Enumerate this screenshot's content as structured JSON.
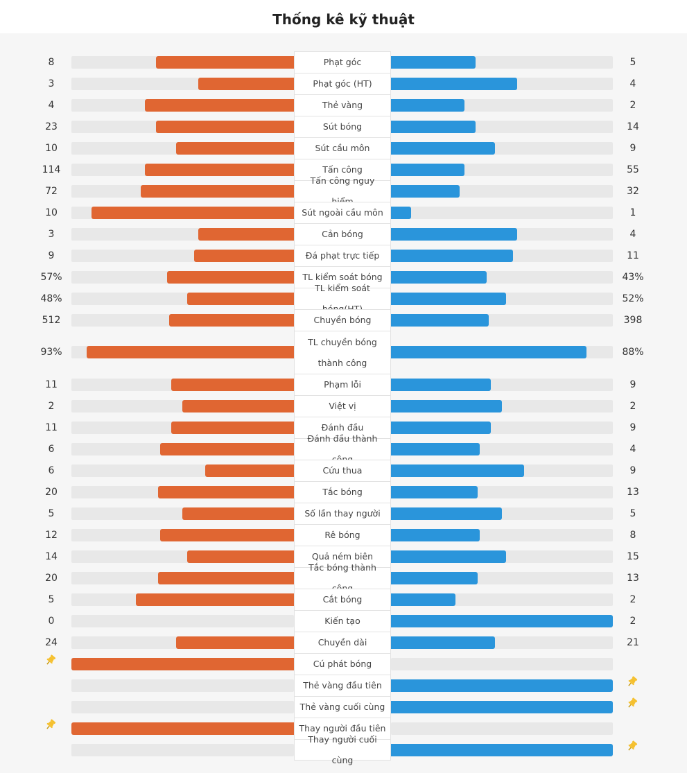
{
  "title": "Thống kê kỹ thuật",
  "colors": {
    "home": "#e06632",
    "away": "#2a95db",
    "track": "#e8e8e8",
    "pin": "#f5c02e"
  },
  "rows": [
    {
      "label": "Phạt góc",
      "home": "8",
      "away": "5",
      "home_fill": 0.62,
      "away_fill": 0.38
    },
    {
      "label": "Phạt góc (HT)",
      "home": "3",
      "away": "4",
      "home_fill": 0.43,
      "away_fill": 0.57
    },
    {
      "label": "Thẻ vàng",
      "home": "4",
      "away": "2",
      "home_fill": 0.67,
      "away_fill": 0.33
    },
    {
      "label": "Sút bóng",
      "home": "23",
      "away": "14",
      "home_fill": 0.62,
      "away_fill": 0.38
    },
    {
      "label": "Sút cầu môn",
      "home": "10",
      "away": "9",
      "home_fill": 0.53,
      "away_fill": 0.47
    },
    {
      "label": "Tấn công",
      "home": "114",
      "away": "55",
      "home_fill": 0.67,
      "away_fill": 0.33
    },
    {
      "label": "Tấn công nguy hiểm",
      "home": "72",
      "away": "32",
      "home_fill": 0.69,
      "away_fill": 0.31
    },
    {
      "label": "Sút ngoài cầu môn",
      "home": "10",
      "away": "1",
      "home_fill": 0.91,
      "away_fill": 0.09
    },
    {
      "label": "Cản bóng",
      "home": "3",
      "away": "4",
      "home_fill": 0.43,
      "away_fill": 0.57
    },
    {
      "label": "Đá phạt trực tiếp",
      "home": "9",
      "away": "11",
      "home_fill": 0.45,
      "away_fill": 0.55
    },
    {
      "label": "TL kiểm soát bóng",
      "home": "57%",
      "away": "43%",
      "home_fill": 0.57,
      "away_fill": 0.43
    },
    {
      "label": "TL kiểm soát bóng(HT)",
      "home": "48%",
      "away": "52%",
      "home_fill": 0.48,
      "away_fill": 0.52
    },
    {
      "label": "Chuyền bóng",
      "home": "512",
      "away": "398",
      "home_fill": 0.56,
      "away_fill": 0.44
    },
    {
      "label": "TL chuyền bóng thành công",
      "home": "93%",
      "away": "88%",
      "home_fill": 0.93,
      "away_fill": 0.88,
      "tall": true
    },
    {
      "label": "Phạm lỗi",
      "home": "11",
      "away": "9",
      "home_fill": 0.55,
      "away_fill": 0.45
    },
    {
      "label": "Việt vị",
      "home": "2",
      "away": "2",
      "home_fill": 0.5,
      "away_fill": 0.5
    },
    {
      "label": "Đánh đầu",
      "home": "11",
      "away": "9",
      "home_fill": 0.55,
      "away_fill": 0.45
    },
    {
      "label": "Đánh đầu thành công",
      "home": "6",
      "away": "4",
      "home_fill": 0.6,
      "away_fill": 0.4
    },
    {
      "label": "Cứu thua",
      "home": "6",
      "away": "9",
      "home_fill": 0.4,
      "away_fill": 0.6
    },
    {
      "label": "Tắc bóng",
      "home": "20",
      "away": "13",
      "home_fill": 0.61,
      "away_fill": 0.39
    },
    {
      "label": "Số lần thay người",
      "home": "5",
      "away": "5",
      "home_fill": 0.5,
      "away_fill": 0.5
    },
    {
      "label": "Rê bóng",
      "home": "12",
      "away": "8",
      "home_fill": 0.6,
      "away_fill": 0.4
    },
    {
      "label": "Quả ném biên",
      "home": "14",
      "away": "15",
      "home_fill": 0.48,
      "away_fill": 0.52
    },
    {
      "label": "Tắc bóng thành công",
      "home": "20",
      "away": "13",
      "home_fill": 0.61,
      "away_fill": 0.39
    },
    {
      "label": "Cắt bóng",
      "home": "5",
      "away": "2",
      "home_fill": 0.71,
      "away_fill": 0.29
    },
    {
      "label": "Kiến tạo",
      "home": "0",
      "away": "2",
      "home_fill": 0.0,
      "away_fill": 1.0
    },
    {
      "label": "Chuyền dài",
      "home": "24",
      "away": "21",
      "home_fill": 0.53,
      "away_fill": 0.47
    },
    {
      "label": "Cú phát bóng",
      "home": "",
      "away": "",
      "home_fill": 1.0,
      "away_fill": 0.0,
      "home_icon": "pin-icon"
    },
    {
      "label": "Thẻ vàng đầu tiên",
      "home": "",
      "away": "",
      "home_fill": 0.0,
      "away_fill": 1.0,
      "away_icon": "pin-icon"
    },
    {
      "label": "Thẻ vàng cuối cùng",
      "home": "",
      "away": "",
      "home_fill": 0.0,
      "away_fill": 1.0,
      "away_icon": "pin-icon"
    },
    {
      "label": "Thay người đầu tiên",
      "home": "",
      "away": "",
      "home_fill": 1.0,
      "away_fill": 0.0,
      "home_icon": "pin-icon"
    },
    {
      "label": "Thay người cuối cùng",
      "home": "",
      "away": "",
      "home_fill": 0.0,
      "away_fill": 1.0,
      "away_icon": "pin-icon"
    }
  ]
}
